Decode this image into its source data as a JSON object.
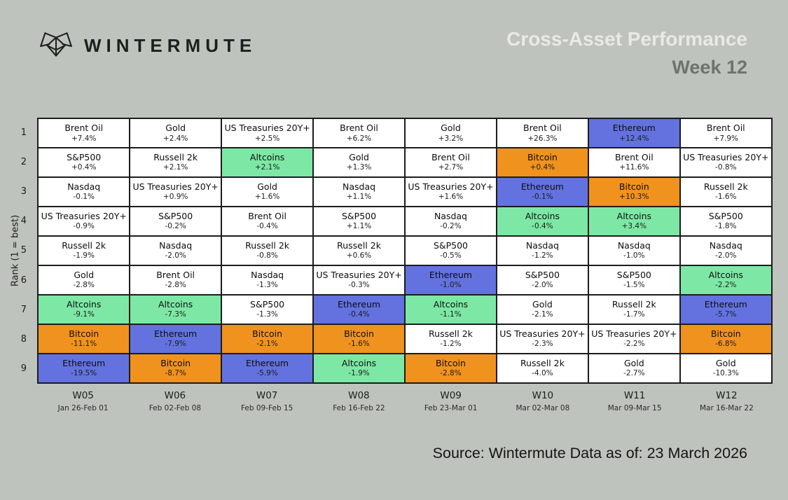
{
  "header": {
    "logo_text": "WINTERMUTE",
    "title": "Cross-Asset Performance",
    "subtitle": "Week 12"
  },
  "footer": {
    "source": "Source: Wintermute  Data as of: 23 March 2026"
  },
  "colors": {
    "background": "#bfc3bd",
    "cell_default": "#ffffff",
    "altcoins": "#7de8a5",
    "bitcoin": "#f0921e",
    "ethereum": "#6372de",
    "grid_line": "#1c1c1c",
    "title_light": "#e7eae5",
    "title_dark": "#6f736e"
  },
  "chart_data": {
    "type": "heatmap",
    "title": "Cross-Asset Performance",
    "subtitle": "Week 12",
    "ylabel": "Rank (1 = best)",
    "ranks": [
      "1",
      "2",
      "3",
      "4",
      "5",
      "6",
      "7",
      "8",
      "9"
    ],
    "legend_note": "cells colored by asset: ethereum=blue, bitcoin=orange, altcoins=green",
    "weeks": [
      {
        "label": "W05",
        "dates": "Jan 26-Feb 01",
        "cells": [
          {
            "asset": "Brent Oil",
            "change": "+7.4%",
            "hl": "none"
          },
          {
            "asset": "S&P500",
            "change": "+0.4%",
            "hl": "none"
          },
          {
            "asset": "Nasdaq",
            "change": "-0.1%",
            "hl": "none"
          },
          {
            "asset": "US Treasuries 20Y+",
            "change": "-0.9%",
            "hl": "none"
          },
          {
            "asset": "Russell 2k",
            "change": "-1.9%",
            "hl": "none"
          },
          {
            "asset": "Gold",
            "change": "-2.8%",
            "hl": "none"
          },
          {
            "asset": "Altcoins",
            "change": "-9.1%",
            "hl": "altcoins"
          },
          {
            "asset": "Bitcoin",
            "change": "-11.1%",
            "hl": "bitcoin"
          },
          {
            "asset": "Ethereum",
            "change": "-19.5%",
            "hl": "ethereum"
          }
        ]
      },
      {
        "label": "W06",
        "dates": "Feb 02-Feb 08",
        "cells": [
          {
            "asset": "Gold",
            "change": "+2.4%",
            "hl": "none"
          },
          {
            "asset": "Russell 2k",
            "change": "+2.1%",
            "hl": "none"
          },
          {
            "asset": "US Treasuries 20Y+",
            "change": "+0.9%",
            "hl": "none"
          },
          {
            "asset": "S&P500",
            "change": "-0.2%",
            "hl": "none"
          },
          {
            "asset": "Nasdaq",
            "change": "-2.0%",
            "hl": "none"
          },
          {
            "asset": "Brent Oil",
            "change": "-2.8%",
            "hl": "none"
          },
          {
            "asset": "Altcoins",
            "change": "-7.3%",
            "hl": "altcoins"
          },
          {
            "asset": "Ethereum",
            "change": "-7.9%",
            "hl": "ethereum"
          },
          {
            "asset": "Bitcoin",
            "change": "-8.7%",
            "hl": "bitcoin"
          }
        ]
      },
      {
        "label": "W07",
        "dates": "Feb 09-Feb 15",
        "cells": [
          {
            "asset": "US Treasuries 20Y+",
            "change": "+2.5%",
            "hl": "none"
          },
          {
            "asset": "Altcoins",
            "change": "+2.1%",
            "hl": "altcoins"
          },
          {
            "asset": "Gold",
            "change": "+1.6%",
            "hl": "none"
          },
          {
            "asset": "Brent Oil",
            "change": "-0.4%",
            "hl": "none"
          },
          {
            "asset": "Russell 2k",
            "change": "-0.8%",
            "hl": "none"
          },
          {
            "asset": "Nasdaq",
            "change": "-1.3%",
            "hl": "none"
          },
          {
            "asset": "S&P500",
            "change": "-1.3%",
            "hl": "none"
          },
          {
            "asset": "Bitcoin",
            "change": "-2.1%",
            "hl": "bitcoin"
          },
          {
            "asset": "Ethereum",
            "change": "-5.9%",
            "hl": "ethereum"
          }
        ]
      },
      {
        "label": "W08",
        "dates": "Feb 16-Feb 22",
        "cells": [
          {
            "asset": "Brent Oil",
            "change": "+6.2%",
            "hl": "none"
          },
          {
            "asset": "Gold",
            "change": "+1.3%",
            "hl": "none"
          },
          {
            "asset": "Nasdaq",
            "change": "+1.1%",
            "hl": "none"
          },
          {
            "asset": "S&P500",
            "change": "+1.1%",
            "hl": "none"
          },
          {
            "asset": "Russell 2k",
            "change": "+0.6%",
            "hl": "none"
          },
          {
            "asset": "US Treasuries 20Y+",
            "change": "-0.3%",
            "hl": "none"
          },
          {
            "asset": "Ethereum",
            "change": "-0.4%",
            "hl": "ethereum"
          },
          {
            "asset": "Bitcoin",
            "change": "-1.6%",
            "hl": "bitcoin"
          },
          {
            "asset": "Altcoins",
            "change": "-1.9%",
            "hl": "altcoins"
          }
        ]
      },
      {
        "label": "W09",
        "dates": "Feb 23-Mar 01",
        "cells": [
          {
            "asset": "Gold",
            "change": "+3.2%",
            "hl": "none"
          },
          {
            "asset": "Brent Oil",
            "change": "+2.7%",
            "hl": "none"
          },
          {
            "asset": "US Treasuries 20Y+",
            "change": "+1.6%",
            "hl": "none"
          },
          {
            "asset": "Nasdaq",
            "change": "-0.2%",
            "hl": "none"
          },
          {
            "asset": "S&P500",
            "change": "-0.5%",
            "hl": "none"
          },
          {
            "asset": "Ethereum",
            "change": "-1.0%",
            "hl": "ethereum"
          },
          {
            "asset": "Altcoins",
            "change": "-1.1%",
            "hl": "altcoins"
          },
          {
            "asset": "Russell 2k",
            "change": "-1.2%",
            "hl": "none"
          },
          {
            "asset": "Bitcoin",
            "change": "-2.8%",
            "hl": "bitcoin"
          }
        ]
      },
      {
        "label": "W10",
        "dates": "Mar 02-Mar 08",
        "cells": [
          {
            "asset": "Brent Oil",
            "change": "+26.3%",
            "hl": "none"
          },
          {
            "asset": "Bitcoin",
            "change": "+0.4%",
            "hl": "bitcoin"
          },
          {
            "asset": "Ethereum",
            "change": "-0.1%",
            "hl": "ethereum"
          },
          {
            "asset": "Altcoins",
            "change": "-0.4%",
            "hl": "altcoins"
          },
          {
            "asset": "Nasdaq",
            "change": "-1.2%",
            "hl": "none"
          },
          {
            "asset": "S&P500",
            "change": "-2.0%",
            "hl": "none"
          },
          {
            "asset": "Gold",
            "change": "-2.1%",
            "hl": "none"
          },
          {
            "asset": "US Treasuries 20Y+",
            "change": "-2.3%",
            "hl": "none"
          },
          {
            "asset": "Russell 2k",
            "change": "-4.0%",
            "hl": "none"
          }
        ]
      },
      {
        "label": "W11",
        "dates": "Mar 09-Mar 15",
        "cells": [
          {
            "asset": "Ethereum",
            "change": "+12.4%",
            "hl": "ethereum"
          },
          {
            "asset": "Brent Oil",
            "change": "+11.6%",
            "hl": "none"
          },
          {
            "asset": "Bitcoin",
            "change": "+10.3%",
            "hl": "bitcoin"
          },
          {
            "asset": "Altcoins",
            "change": "+3.4%",
            "hl": "altcoins"
          },
          {
            "asset": "Nasdaq",
            "change": "-1.0%",
            "hl": "none"
          },
          {
            "asset": "S&P500",
            "change": "-1.5%",
            "hl": "none"
          },
          {
            "asset": "Russell 2k",
            "change": "-1.7%",
            "hl": "none"
          },
          {
            "asset": "US Treasuries 20Y+",
            "change": "-2.2%",
            "hl": "none"
          },
          {
            "asset": "Gold",
            "change": "-2.7%",
            "hl": "none"
          }
        ]
      },
      {
        "label": "W12",
        "dates": "Mar 16-Mar 22",
        "cells": [
          {
            "asset": "Brent Oil",
            "change": "+7.9%",
            "hl": "none"
          },
          {
            "asset": "US Treasuries 20Y+",
            "change": "-0.8%",
            "hl": "none"
          },
          {
            "asset": "Russell 2k",
            "change": "-1.6%",
            "hl": "none"
          },
          {
            "asset": "S&P500",
            "change": "-1.8%",
            "hl": "none"
          },
          {
            "asset": "Nasdaq",
            "change": "-2.0%",
            "hl": "none"
          },
          {
            "asset": "Altcoins",
            "change": "-2.2%",
            "hl": "altcoins"
          },
          {
            "asset": "Ethereum",
            "change": "-5.7%",
            "hl": "ethereum"
          },
          {
            "asset": "Bitcoin",
            "change": "-6.8%",
            "hl": "bitcoin"
          },
          {
            "asset": "Gold",
            "change": "-10.3%",
            "hl": "none"
          }
        ]
      }
    ]
  }
}
